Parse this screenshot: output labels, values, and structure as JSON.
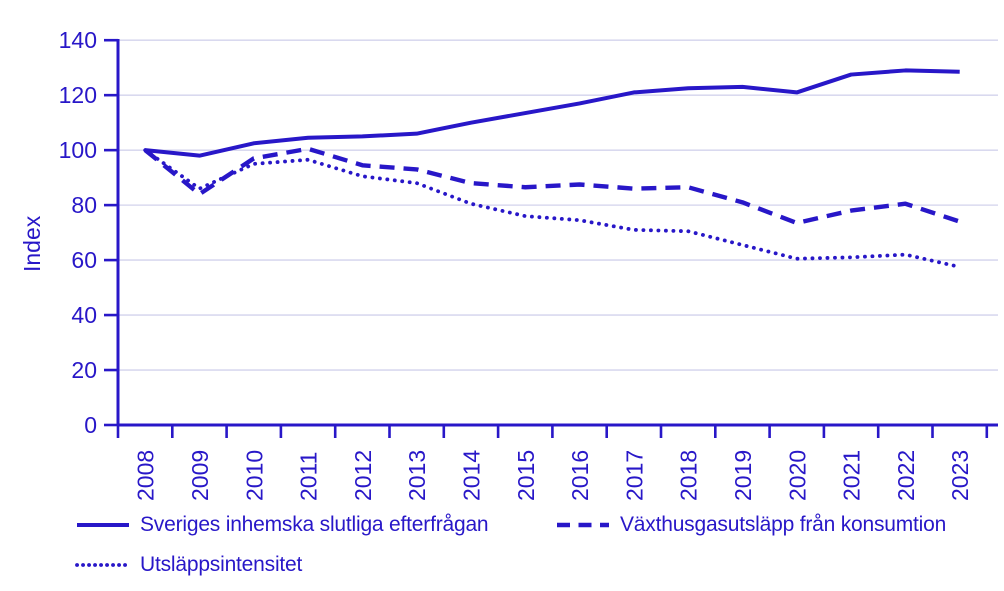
{
  "colors": {
    "accent": "#2817C8",
    "grid": "#D9D9EF",
    "background": "#FFFFFF"
  },
  "chart_data": {
    "type": "line",
    "title": "",
    "xlabel": "",
    "ylabel": "Index",
    "x": [
      2008,
      2009,
      2010,
      2011,
      2012,
      2013,
      2014,
      2015,
      2016,
      2017,
      2018,
      2019,
      2020,
      2021,
      2022,
      2023
    ],
    "ylim": [
      0,
      140
    ],
    "ytick_step": 20,
    "yticks": [
      0,
      20,
      40,
      60,
      80,
      100,
      120,
      140
    ],
    "grid": true,
    "legend_position": "bottom",
    "series": [
      {
        "name": "Sveriges inhemska slutliga efterfrågan",
        "style": "solid",
        "values": [
          100,
          98,
          102.5,
          104.5,
          105,
          106,
          110,
          113.5,
          117,
          121,
          122.5,
          123,
          121,
          127.5,
          129,
          128.5
        ]
      },
      {
        "name": "Växthusgasutsläpp från konsumtion",
        "style": "dashed",
        "values": [
          100,
          84,
          97,
          100.5,
          94.5,
          93,
          88,
          86.5,
          87.5,
          86,
          86.5,
          81,
          73.5,
          78,
          80.5,
          74
        ]
      },
      {
        "name": "Utsläppsintensitet",
        "style": "dotted",
        "values": [
          100,
          86,
          95,
          96.5,
          90.5,
          88,
          80.5,
          76,
          74.5,
          71,
          70.5,
          65.5,
          60.5,
          61,
          62,
          57.5
        ]
      }
    ]
  }
}
